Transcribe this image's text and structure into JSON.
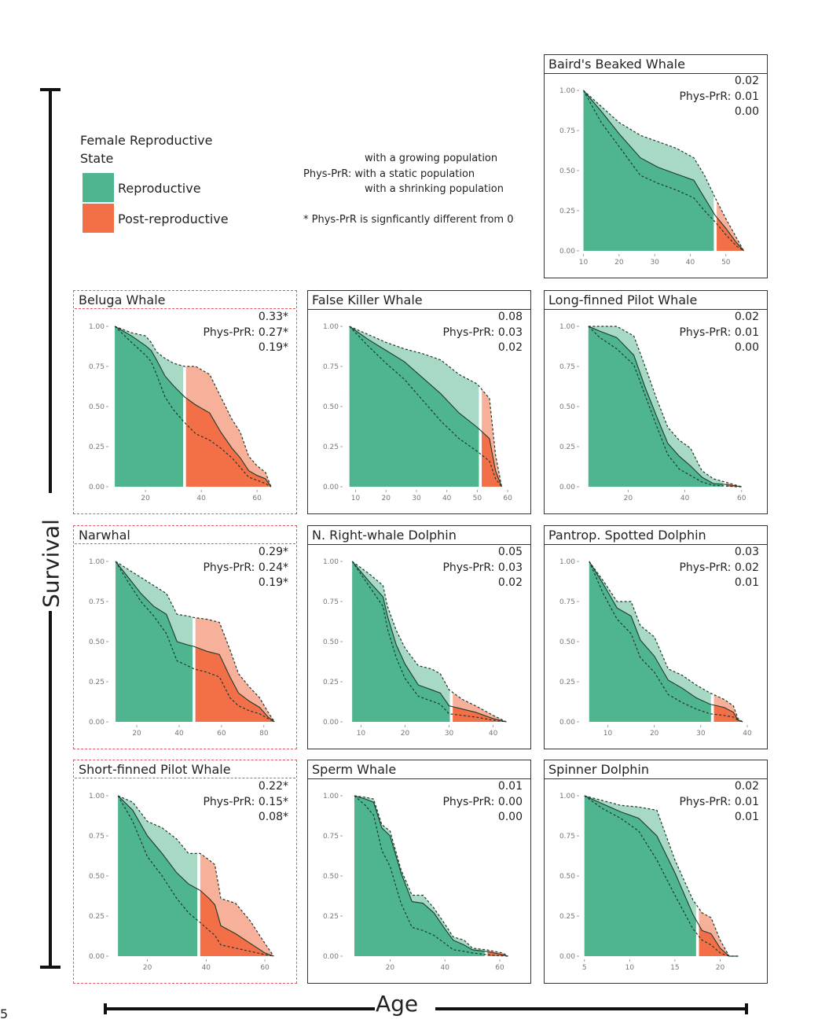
{
  "figure": {
    "y_axis_title": "Survival",
    "x_axis_title": "Age",
    "page_marker": "5"
  },
  "legend": {
    "title_line1": "Female Reproductive",
    "title_line2": "State",
    "items": [
      {
        "label": "Reproductive",
        "color": "#4fb58f"
      },
      {
        "label": "Post-reproductive",
        "color": "#f36f47"
      }
    ],
    "explanation": {
      "line1": "with a growing population",
      "line2": "Phys-PrR: with a static population",
      "line3": "with a shrinking population",
      "footnote": "* Phys-PrR is signficantly different from 0"
    }
  },
  "colors": {
    "repro_dark": "#4fb58f",
    "repro_light": "#a8d9c5",
    "post_dark": "#f36f47",
    "post_light": "#f7b09a",
    "sig_border": "#e05a5a"
  },
  "chart_data": [
    {
      "type": "area",
      "title": "Baird's Beaked Whale",
      "significant": false,
      "stats": {
        "growing": "0.02",
        "label": "Phys-PrR: 0.01",
        "static": "0.01",
        "shrinking": "0.00"
      },
      "xlim": [
        9,
        56
      ],
      "xticks": [
        10,
        20,
        30,
        40,
        50
      ],
      "ylim": [
        0,
        1
      ],
      "yticks": [
        "0.00",
        "0.25",
        "0.50",
        "0.75",
        "1.00"
      ],
      "split_age": 47,
      "x": [
        10,
        15,
        20,
        26,
        31,
        36,
        41,
        44,
        47,
        50,
        53,
        55
      ],
      "static": [
        1.0,
        0.87,
        0.73,
        0.58,
        0.52,
        0.48,
        0.44,
        0.33,
        0.22,
        0.14,
        0.05,
        0.0
      ],
      "upper": [
        1.0,
        0.9,
        0.8,
        0.72,
        0.68,
        0.64,
        0.58,
        0.47,
        0.33,
        0.2,
        0.08,
        0.0
      ],
      "lower": [
        1.0,
        0.8,
        0.65,
        0.47,
        0.42,
        0.38,
        0.33,
        0.25,
        0.18,
        0.1,
        0.03,
        0.0
      ]
    },
    {
      "type": "area",
      "title": "Beluga Whale",
      "significant": true,
      "stats": {
        "growing": "0.33*",
        "label": "Phys-PrR: 0.27*",
        "static": "0.27*",
        "shrinking": "0.19*"
      },
      "xlim": [
        7,
        67
      ],
      "xticks": [
        20,
        40,
        60
      ],
      "ylim": [
        0,
        1
      ],
      "yticks": [
        "0.00",
        "0.25",
        "0.50",
        "0.75",
        "1.00"
      ],
      "split_age": 34,
      "x": [
        9,
        15,
        20,
        22,
        24,
        27,
        30,
        34,
        38,
        43,
        47,
        51,
        54,
        57,
        60,
        63,
        65
      ],
      "static": [
        1.0,
        0.94,
        0.88,
        0.85,
        0.79,
        0.69,
        0.63,
        0.56,
        0.51,
        0.46,
        0.34,
        0.24,
        0.18,
        0.1,
        0.07,
        0.05,
        0.0
      ],
      "upper": [
        1.0,
        0.96,
        0.94,
        0.9,
        0.84,
        0.8,
        0.77,
        0.75,
        0.75,
        0.7,
        0.56,
        0.42,
        0.34,
        0.19,
        0.13,
        0.09,
        0.0
      ],
      "lower": [
        1.0,
        0.9,
        0.82,
        0.78,
        0.7,
        0.56,
        0.48,
        0.4,
        0.33,
        0.29,
        0.24,
        0.18,
        0.12,
        0.06,
        0.04,
        0.02,
        0.0
      ]
    },
    {
      "type": "area",
      "title": "False Killer Whale",
      "significant": false,
      "stats": {
        "growing": "0.08",
        "label": "Phys-PrR: 0.03",
        "static": "0.03",
        "shrinking": "0.02"
      },
      "xlim": [
        6,
        61
      ],
      "xticks": [
        10,
        20,
        30,
        40,
        50,
        60
      ],
      "ylim": [
        0,
        1
      ],
      "yticks": [
        "0.00",
        "0.25",
        "0.50",
        "0.75",
        "1.00"
      ],
      "split_age": 51,
      "x": [
        8,
        14,
        20,
        26,
        32,
        38,
        44,
        50,
        54,
        56,
        58
      ],
      "static": [
        1.0,
        0.92,
        0.85,
        0.78,
        0.68,
        0.58,
        0.46,
        0.37,
        0.3,
        0.1,
        0.0
      ],
      "upper": [
        1.0,
        0.95,
        0.9,
        0.86,
        0.83,
        0.79,
        0.7,
        0.64,
        0.55,
        0.2,
        0.0
      ],
      "lower": [
        1.0,
        0.88,
        0.77,
        0.67,
        0.54,
        0.41,
        0.3,
        0.22,
        0.16,
        0.05,
        0.0
      ]
    },
    {
      "type": "area",
      "title": "Long-finned Pilot Whale",
      "significant": false,
      "stats": {
        "growing": "0.02",
        "label": "Phys-PrR: 0.01",
        "static": "0.01",
        "shrinking": "0.00"
      },
      "xlim": [
        3,
        62
      ],
      "xticks": [
        20,
        40,
        60
      ],
      "ylim": [
        0,
        1
      ],
      "yticks": [
        "0.00",
        "0.25",
        "0.50",
        "0.75",
        "1.00"
      ],
      "split_age": 54,
      "x": [
        6,
        10,
        16,
        22,
        26,
        30,
        34,
        38,
        42,
        46,
        50,
        54,
        58,
        60
      ],
      "static": [
        1.0,
        0.97,
        0.93,
        0.82,
        0.62,
        0.44,
        0.27,
        0.19,
        0.13,
        0.06,
        0.02,
        0.015,
        0.005,
        0.0
      ],
      "upper": [
        1.0,
        1.0,
        1.0,
        0.94,
        0.75,
        0.55,
        0.37,
        0.29,
        0.24,
        0.1,
        0.05,
        0.03,
        0.01,
        0.0
      ],
      "lower": [
        1.0,
        0.93,
        0.86,
        0.76,
        0.57,
        0.38,
        0.2,
        0.11,
        0.07,
        0.03,
        0.01,
        0.005,
        0.0,
        0.0
      ]
    },
    {
      "type": "area",
      "title": "Narwhal",
      "significant": true,
      "stats": {
        "growing": "0.29*",
        "label": "Phys-PrR: 0.24*",
        "static": "0.24*",
        "shrinking": "0.19*"
      },
      "xlim": [
        7,
        86
      ],
      "xticks": [
        20,
        40,
        60,
        80
      ],
      "ylim": [
        0,
        1
      ],
      "yticks": [
        "0.00",
        "0.25",
        "0.50",
        "0.75",
        "1.00"
      ],
      "split_age": 47,
      "x": [
        10,
        16,
        22,
        28,
        34,
        39,
        44,
        47,
        53,
        59,
        64,
        68,
        73,
        78,
        82,
        85
      ],
      "static": [
        1.0,
        0.9,
        0.8,
        0.72,
        0.67,
        0.5,
        0.48,
        0.47,
        0.44,
        0.42,
        0.28,
        0.18,
        0.13,
        0.09,
        0.03,
        0.0
      ],
      "upper": [
        1.0,
        0.95,
        0.9,
        0.85,
        0.8,
        0.67,
        0.66,
        0.65,
        0.64,
        0.62,
        0.45,
        0.3,
        0.22,
        0.15,
        0.06,
        0.0
      ],
      "lower": [
        1.0,
        0.87,
        0.75,
        0.66,
        0.55,
        0.38,
        0.35,
        0.33,
        0.31,
        0.28,
        0.15,
        0.1,
        0.07,
        0.05,
        0.02,
        0.0
      ]
    },
    {
      "type": "area",
      "title": "N. Right-whale Dolphin",
      "significant": false,
      "stats": {
        "growing": "0.05",
        "label": "Phys-PrR: 0.03",
        "static": "0.03",
        "shrinking": "0.02"
      },
      "xlim": [
        6,
        44
      ],
      "xticks": [
        10,
        20,
        30,
        40
      ],
      "ylim": [
        0,
        1
      ],
      "yticks": [
        "0.00",
        "0.25",
        "0.50",
        "0.75",
        "1.00"
      ],
      "split_age": 30.5,
      "x": [
        8,
        12,
        15,
        16,
        18,
        20,
        23,
        26,
        28,
        30,
        33,
        36,
        40,
        43
      ],
      "static": [
        1.0,
        0.87,
        0.78,
        0.66,
        0.48,
        0.36,
        0.23,
        0.2,
        0.18,
        0.1,
        0.08,
        0.06,
        0.02,
        0.0
      ],
      "upper": [
        1.0,
        0.92,
        0.85,
        0.72,
        0.57,
        0.46,
        0.35,
        0.33,
        0.3,
        0.2,
        0.14,
        0.1,
        0.04,
        0.0
      ],
      "lower": [
        1.0,
        0.84,
        0.72,
        0.58,
        0.4,
        0.27,
        0.16,
        0.13,
        0.11,
        0.05,
        0.04,
        0.03,
        0.01,
        0.0
      ]
    },
    {
      "type": "area",
      "title": "Pantrop. Spotted Dolphin",
      "significant": false,
      "stats": {
        "growing": "0.03",
        "label": "Phys-PrR: 0.02",
        "static": "0.02",
        "shrinking": "0.01"
      },
      "xlim": [
        4,
        40
      ],
      "xticks": [
        10,
        20,
        30,
        40
      ],
      "ylim": [
        0,
        1
      ],
      "yticks": [
        "0.00",
        "0.25",
        "0.50",
        "0.75",
        "1.00"
      ],
      "split_age": 32.5,
      "x": [
        6,
        9,
        12,
        15,
        17,
        20,
        23,
        26,
        29,
        32,
        35,
        37,
        38,
        39
      ],
      "static": [
        1.0,
        0.86,
        0.71,
        0.66,
        0.51,
        0.41,
        0.26,
        0.21,
        0.15,
        0.11,
        0.09,
        0.06,
        0.01,
        0.0
      ],
      "upper": [
        1.0,
        0.88,
        0.75,
        0.75,
        0.6,
        0.53,
        0.33,
        0.29,
        0.23,
        0.18,
        0.14,
        0.1,
        0.02,
        0.0
      ],
      "lower": [
        1.0,
        0.8,
        0.64,
        0.55,
        0.4,
        0.31,
        0.17,
        0.12,
        0.08,
        0.05,
        0.04,
        0.03,
        0.01,
        0.0
      ]
    },
    {
      "type": "area",
      "title": "Short-finned Pilot Whale",
      "significant": true,
      "stats": {
        "growing": "0.22*",
        "label": "Phys-PrR: 0.15*",
        "static": "0.15*",
        "shrinking": "0.08*"
      },
      "xlim": [
        7,
        64
      ],
      "xticks": [
        20,
        40,
        60
      ],
      "ylim": [
        0,
        1
      ],
      "yticks": [
        "0.00",
        "0.25",
        "0.50",
        "0.75",
        "1.00"
      ],
      "split_age": 37.5,
      "x": [
        10,
        15,
        20,
        25,
        30,
        34,
        38,
        41,
        43,
        45,
        50,
        55,
        60,
        63
      ],
      "static": [
        1.0,
        0.91,
        0.75,
        0.64,
        0.52,
        0.45,
        0.41,
        0.36,
        0.32,
        0.19,
        0.14,
        0.08,
        0.02,
        0.0
      ],
      "upper": [
        1.0,
        0.96,
        0.84,
        0.8,
        0.73,
        0.64,
        0.64,
        0.6,
        0.57,
        0.36,
        0.33,
        0.22,
        0.08,
        0.0
      ],
      "lower": [
        1.0,
        0.84,
        0.62,
        0.5,
        0.36,
        0.27,
        0.21,
        0.16,
        0.13,
        0.07,
        0.05,
        0.03,
        0.01,
        0.0
      ]
    },
    {
      "type": "area",
      "title": "Sperm Whale",
      "significant": false,
      "stats": {
        "growing": "0.01",
        "label": "Phys-PrR: 0.00",
        "static": "0.00",
        "shrinking": "0.00"
      },
      "xlim": [
        3,
        64
      ],
      "xticks": [
        20,
        40,
        60
      ],
      "ylim": [
        0,
        1
      ],
      "yticks": [
        "0.00",
        "0.25",
        "0.50",
        "0.75",
        "1.00"
      ],
      "split_age": 55,
      "x": [
        7,
        11,
        14,
        17,
        20,
        24,
        28,
        32,
        36,
        40,
        43,
        47,
        50,
        55,
        58,
        61,
        63
      ],
      "static": [
        1.0,
        0.98,
        0.96,
        0.8,
        0.75,
        0.52,
        0.34,
        0.33,
        0.27,
        0.17,
        0.1,
        0.07,
        0.04,
        0.03,
        0.02,
        0.01,
        0.0
      ],
      "upper": [
        1.0,
        0.99,
        0.98,
        0.82,
        0.78,
        0.54,
        0.38,
        0.38,
        0.3,
        0.2,
        0.12,
        0.1,
        0.05,
        0.04,
        0.03,
        0.02,
        0.0
      ],
      "lower": [
        1.0,
        0.94,
        0.88,
        0.66,
        0.56,
        0.33,
        0.18,
        0.16,
        0.13,
        0.08,
        0.04,
        0.03,
        0.02,
        0.01,
        0.005,
        0.002,
        0.0
      ]
    },
    {
      "type": "area",
      "title": "Spinner Dolphin",
      "significant": false,
      "stats": {
        "growing": "0.02",
        "label": "Phys-PrR: 0.01",
        "static": "0.01",
        "shrinking": "0.01"
      },
      "xlim": [
        4.5,
        23
      ],
      "xticks": [
        5,
        10,
        15,
        20
      ],
      "ylim": [
        0,
        1
      ],
      "yticks": [
        "0.00",
        "0.25",
        "0.50",
        "0.75",
        "1.00"
      ],
      "split_age": 17.5,
      "x": [
        5,
        7,
        9,
        11,
        13,
        15,
        17,
        18,
        19,
        20,
        21,
        22
      ],
      "static": [
        1.0,
        0.95,
        0.9,
        0.86,
        0.75,
        0.52,
        0.26,
        0.16,
        0.14,
        0.05,
        0.0,
        0.0
      ],
      "upper": [
        1.0,
        0.97,
        0.94,
        0.93,
        0.91,
        0.6,
        0.35,
        0.27,
        0.24,
        0.1,
        0.0,
        0.0
      ],
      "lower": [
        1.0,
        0.92,
        0.86,
        0.78,
        0.6,
        0.38,
        0.17,
        0.1,
        0.07,
        0.02,
        0.0,
        0.0
      ]
    }
  ]
}
